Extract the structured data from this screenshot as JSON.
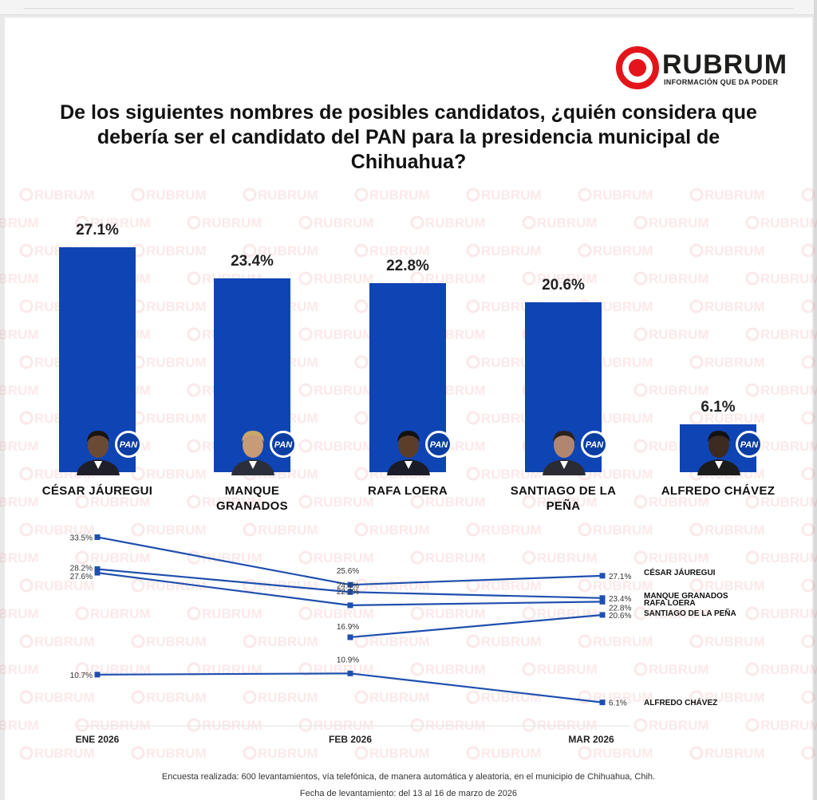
{
  "logo": {
    "brand": "RUBRUM",
    "tagline": "INFORMACIÓN QUE DA PODER"
  },
  "question": "De los siguientes nombres de posibles candidatos, ¿quién considera que debería ser el candidato del PAN para la presidencia municipal de Chihuahua?",
  "party_badge": "PAN",
  "colors": {
    "bar": "#0f44b4",
    "line": "#1f4fae",
    "accent": "#e4141b"
  },
  "chart_data": [
    {
      "type": "bar",
      "title": "De los siguientes nombres de posibles candidatos, ¿quién considera que debería ser el candidato del PAN para la presidencia municipal de Chihuahua?",
      "categories": [
        "CÉSAR JÁUREGUI",
        "MANQUE GRANADOS",
        "RAFA LOERA",
        "SANTIAGO DE LA PEÑA",
        "ALFREDO CHÁVEZ"
      ],
      "values": [
        27.1,
        23.4,
        22.8,
        20.6,
        6.1
      ],
      "value_labels": [
        "27.1%",
        "23.4%",
        "22.8%",
        "20.6%",
        "6.1%"
      ],
      "ylim": [
        0,
        27.1
      ]
    },
    {
      "type": "line",
      "x": [
        "ENE 2026",
        "FEB 2026",
        "MAR 2026"
      ],
      "series": [
        {
          "name": "CÉSAR JÁUREGUI",
          "values": [
            33.5,
            25.6,
            27.1
          ],
          "labels": [
            "33.5%",
            "25.6%",
            "27.1%"
          ]
        },
        {
          "name": "MANQUE GRANADOS",
          "values": [
            28.2,
            24.4,
            23.4
          ],
          "labels": [
            "28.2%",
            "24.4%",
            "23.4%"
          ]
        },
        {
          "name": "RAFA LOERA",
          "values": [
            27.6,
            22.2,
            22.8
          ],
          "labels": [
            "27.6%",
            "22.2%",
            "22.8%"
          ]
        },
        {
          "name": "SANTIAGO DE LA PEÑA",
          "values": [
            null,
            16.9,
            20.6
          ],
          "labels": [
            "",
            "16.9%",
            "20.6%"
          ]
        },
        {
          "name": "ALFREDO CHÁVEZ",
          "values": [
            10.7,
            10.9,
            6.1
          ],
          "labels": [
            "10.7%",
            "10.9%",
            "6.1%"
          ]
        }
      ]
    }
  ],
  "footer": {
    "method": "Encuesta realizada: 600 levantamientos, vía telefónica, de manera automática y aleatoria, en el municipio de Chihuahua, Chih.",
    "date": "Fecha de levantamiento: del 13 al 16 de marzo de 2026"
  }
}
